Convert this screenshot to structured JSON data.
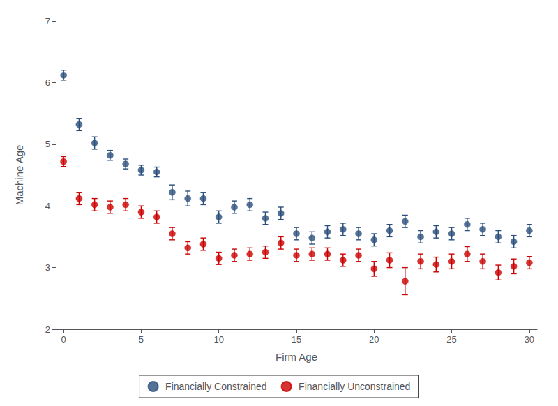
{
  "chart_data": {
    "type": "scatter",
    "xlabel": "Firm Age",
    "ylabel": "Machine Age",
    "xlim": [
      -0.5,
      30.5
    ],
    "ylim": [
      2,
      7
    ],
    "xticks": [
      0,
      5,
      10,
      15,
      20,
      25,
      30
    ],
    "yticks": [
      2,
      3,
      4,
      5,
      6,
      7
    ],
    "grid": false,
    "legend": "bottom",
    "marker": "circle",
    "series": [
      {
        "name": "Financially Constrained",
        "color": "#2a4f7c",
        "x": [
          0,
          1,
          2,
          3,
          4,
          5,
          6,
          7,
          8,
          9,
          10,
          11,
          12,
          13,
          14,
          15,
          16,
          17,
          18,
          19,
          20,
          21,
          22,
          23,
          24,
          25,
          26,
          27,
          28,
          29,
          30
        ],
        "values": [
          6.12,
          5.32,
          5.02,
          4.82,
          4.68,
          4.58,
          4.55,
          4.22,
          4.12,
          4.12,
          3.82,
          3.98,
          4.02,
          3.8,
          3.88,
          3.55,
          3.48,
          3.58,
          3.62,
          3.55,
          3.45,
          3.6,
          3.75,
          3.5,
          3.58,
          3.55,
          3.7,
          3.62,
          3.5,
          3.42,
          3.6
        ],
        "errors": [
          0.08,
          0.1,
          0.1,
          0.08,
          0.08,
          0.08,
          0.08,
          0.12,
          0.12,
          0.1,
          0.1,
          0.1,
          0.1,
          0.1,
          0.1,
          0.1,
          0.1,
          0.1,
          0.1,
          0.1,
          0.1,
          0.1,
          0.1,
          0.1,
          0.1,
          0.1,
          0.1,
          0.1,
          0.1,
          0.1,
          0.1
        ]
      },
      {
        "name": "Financially Unconstrained",
        "color": "#cc0000",
        "x": [
          0,
          1,
          2,
          3,
          4,
          5,
          6,
          7,
          8,
          9,
          10,
          11,
          12,
          13,
          14,
          15,
          16,
          17,
          18,
          19,
          20,
          21,
          22,
          23,
          24,
          25,
          26,
          27,
          28,
          29,
          30
        ],
        "values": [
          4.72,
          4.12,
          4.02,
          3.98,
          4.02,
          3.9,
          3.82,
          3.55,
          3.32,
          3.38,
          3.15,
          3.2,
          3.22,
          3.25,
          3.4,
          3.2,
          3.22,
          3.22,
          3.12,
          3.2,
          2.98,
          3.12,
          2.78,
          3.1,
          3.05,
          3.1,
          3.22,
          3.1,
          2.92,
          3.02,
          3.08
        ],
        "errors": [
          0.08,
          0.1,
          0.1,
          0.1,
          0.1,
          0.1,
          0.1,
          0.1,
          0.1,
          0.1,
          0.1,
          0.1,
          0.1,
          0.1,
          0.1,
          0.1,
          0.1,
          0.1,
          0.1,
          0.1,
          0.12,
          0.12,
          0.22,
          0.12,
          0.12,
          0.12,
          0.12,
          0.12,
          0.12,
          0.12,
          0.1
        ]
      }
    ]
  }
}
